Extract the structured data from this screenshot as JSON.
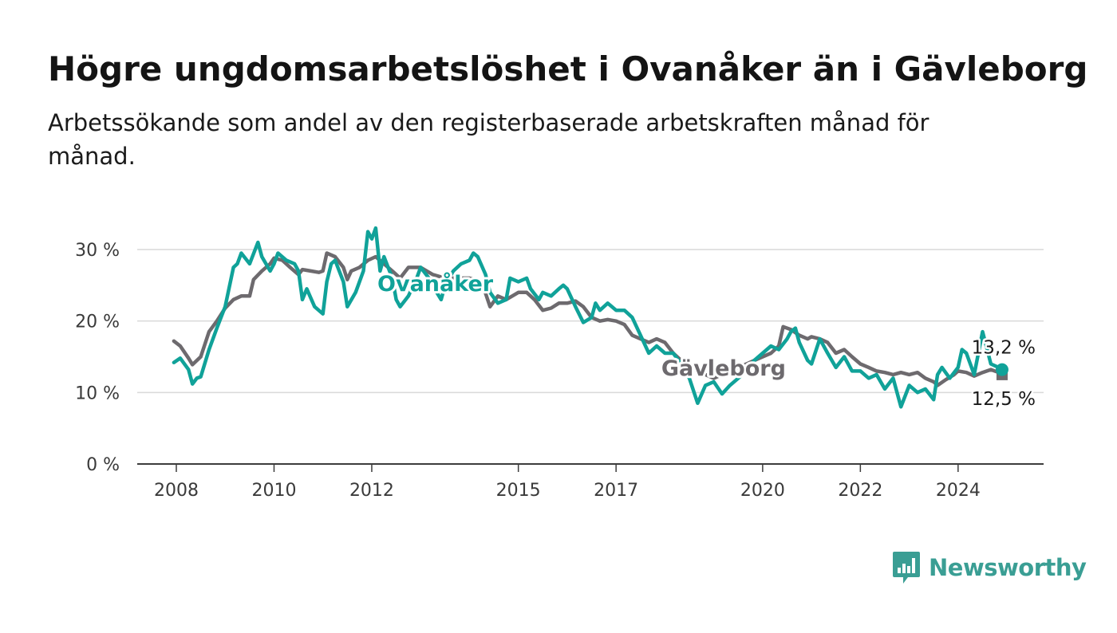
{
  "header": {
    "title": "Högre ungdomsarbetslöshet i Ovanåker än i Gävleborg",
    "subtitle": "Arbetssökande som andel av den registerbaserade arbetskraften månad för månad."
  },
  "brand": {
    "name": "Newsworthy",
    "color": "#3a9e94"
  },
  "chart_data": {
    "type": "line",
    "y_ticks": [
      {
        "value": 0,
        "label": "0 %"
      },
      {
        "value": 10,
        "label": "10 %"
      },
      {
        "value": 20,
        "label": "20 %"
      },
      {
        "value": 30,
        "label": "30 %"
      }
    ],
    "x_ticks": [
      {
        "value": 2008.0,
        "label": "2008"
      },
      {
        "value": 2010.0,
        "label": "2010"
      },
      {
        "value": 2012.0,
        "label": "2012"
      },
      {
        "value": 2015.0,
        "label": "2015"
      },
      {
        "value": 2017.0,
        "label": "2017"
      },
      {
        "value": 2020.0,
        "label": "2020"
      },
      {
        "value": 2022.0,
        "label": "2022"
      },
      {
        "value": 2024.0,
        "label": "2024"
      }
    ],
    "xlim": [
      2007.2,
      2025.75
    ],
    "ylim": [
      0,
      30
    ],
    "grid": true,
    "series": [
      {
        "name": "Gävleborg",
        "color": "#6d6a6e",
        "end_label": "12,5 %",
        "points": [
          [
            2007.95,
            17.2
          ],
          [
            2008.08,
            16.5
          ],
          [
            2008.25,
            14.8
          ],
          [
            2008.33,
            13.9
          ],
          [
            2008.5,
            15.0
          ],
          [
            2008.67,
            18.5
          ],
          [
            2008.83,
            20.0
          ],
          [
            2009.0,
            21.8
          ],
          [
            2009.17,
            23.0
          ],
          [
            2009.33,
            23.5
          ],
          [
            2009.5,
            23.5
          ],
          [
            2009.58,
            25.8
          ],
          [
            2009.75,
            27.0
          ],
          [
            2009.92,
            28.0
          ],
          [
            2010.0,
            28.8
          ],
          [
            2010.17,
            28.5
          ],
          [
            2010.33,
            27.5
          ],
          [
            2010.5,
            26.5
          ],
          [
            2010.58,
            27.2
          ],
          [
            2010.75,
            27.0
          ],
          [
            2010.92,
            26.8
          ],
          [
            2011.0,
            27.0
          ],
          [
            2011.08,
            29.5
          ],
          [
            2011.25,
            29.0
          ],
          [
            2011.42,
            27.5
          ],
          [
            2011.5,
            25.8
          ],
          [
            2011.58,
            27.0
          ],
          [
            2011.75,
            27.5
          ],
          [
            2011.92,
            28.5
          ],
          [
            2012.08,
            29.0
          ],
          [
            2012.25,
            28.0
          ],
          [
            2012.42,
            27.0
          ],
          [
            2012.58,
            26.0
          ],
          [
            2012.75,
            27.5
          ],
          [
            2013.0,
            27.5
          ],
          [
            2013.25,
            26.5
          ],
          [
            2013.5,
            26.0
          ],
          [
            2013.75,
            26.0
          ],
          [
            2014.0,
            26.0
          ],
          [
            2014.25,
            25.5
          ],
          [
            2014.42,
            22.0
          ],
          [
            2014.58,
            23.5
          ],
          [
            2014.75,
            23.0
          ],
          [
            2015.0,
            24.0
          ],
          [
            2015.17,
            24.0
          ],
          [
            2015.33,
            23.0
          ],
          [
            2015.5,
            21.5
          ],
          [
            2015.67,
            21.8
          ],
          [
            2015.83,
            22.5
          ],
          [
            2016.0,
            22.5
          ],
          [
            2016.17,
            22.8
          ],
          [
            2016.33,
            22.0
          ],
          [
            2016.5,
            20.5
          ],
          [
            2016.67,
            20.0
          ],
          [
            2016.83,
            20.2
          ],
          [
            2017.0,
            20.0
          ],
          [
            2017.17,
            19.5
          ],
          [
            2017.33,
            18.0
          ],
          [
            2017.5,
            17.5
          ],
          [
            2017.67,
            17.0
          ],
          [
            2017.83,
            17.5
          ],
          [
            2018.0,
            17.0
          ],
          [
            2018.17,
            15.5
          ],
          [
            2018.33,
            14.5
          ],
          [
            2018.5,
            13.5
          ],
          [
            2018.67,
            13.0
          ],
          [
            2018.83,
            12.5
          ],
          [
            2019.0,
            12.0
          ],
          [
            2019.17,
            12.5
          ],
          [
            2019.33,
            13.0
          ],
          [
            2019.5,
            13.5
          ],
          [
            2019.67,
            14.0
          ],
          [
            2019.83,
            14.5
          ],
          [
            2020.0,
            15.0
          ],
          [
            2020.17,
            15.5
          ],
          [
            2020.33,
            16.5
          ],
          [
            2020.42,
            19.2
          ],
          [
            2020.58,
            18.8
          ],
          [
            2020.75,
            18.0
          ],
          [
            2020.92,
            17.5
          ],
          [
            2021.0,
            17.8
          ],
          [
            2021.17,
            17.5
          ],
          [
            2021.33,
            17.0
          ],
          [
            2021.5,
            15.5
          ],
          [
            2021.67,
            16.0
          ],
          [
            2021.83,
            15.0
          ],
          [
            2022.0,
            14.0
          ],
          [
            2022.17,
            13.5
          ],
          [
            2022.33,
            13.0
          ],
          [
            2022.5,
            12.8
          ],
          [
            2022.67,
            12.5
          ],
          [
            2022.83,
            12.8
          ],
          [
            2023.0,
            12.5
          ],
          [
            2023.17,
            12.8
          ],
          [
            2023.33,
            12.0
          ],
          [
            2023.5,
            11.5
          ],
          [
            2023.58,
            11.0
          ],
          [
            2023.75,
            11.8
          ],
          [
            2023.92,
            12.5
          ],
          [
            2024.0,
            13.0
          ],
          [
            2024.17,
            12.8
          ],
          [
            2024.33,
            12.3
          ],
          [
            2024.5,
            12.8
          ],
          [
            2024.67,
            13.2
          ],
          [
            2024.83,
            12.8
          ],
          [
            2024.9,
            12.5
          ]
        ]
      },
      {
        "name": "Ovanåker",
        "color": "#10a299",
        "end_label": "13,2 %",
        "points": [
          [
            2007.95,
            14.2
          ],
          [
            2008.08,
            14.8
          ],
          [
            2008.25,
            13.2
          ],
          [
            2008.33,
            11.2
          ],
          [
            2008.42,
            12.0
          ],
          [
            2008.5,
            12.2
          ],
          [
            2008.67,
            16.0
          ],
          [
            2008.83,
            19.0
          ],
          [
            2009.0,
            22.0
          ],
          [
            2009.17,
            27.5
          ],
          [
            2009.25,
            28.0
          ],
          [
            2009.33,
            29.5
          ],
          [
            2009.5,
            28.0
          ],
          [
            2009.67,
            31.0
          ],
          [
            2009.75,
            29.0
          ],
          [
            2009.92,
            27.0
          ],
          [
            2010.0,
            28.0
          ],
          [
            2010.08,
            29.5
          ],
          [
            2010.25,
            28.5
          ],
          [
            2010.42,
            28.0
          ],
          [
            2010.5,
            27.0
          ],
          [
            2010.58,
            23.0
          ],
          [
            2010.67,
            24.5
          ],
          [
            2010.83,
            22.0
          ],
          [
            2011.0,
            21.0
          ],
          [
            2011.08,
            25.5
          ],
          [
            2011.17,
            28.0
          ],
          [
            2011.25,
            28.5
          ],
          [
            2011.42,
            25.5
          ],
          [
            2011.5,
            22.0
          ],
          [
            2011.67,
            24.0
          ],
          [
            2011.83,
            27.0
          ],
          [
            2011.92,
            32.5
          ],
          [
            2012.0,
            31.5
          ],
          [
            2012.08,
            33.0
          ],
          [
            2012.17,
            27.0
          ],
          [
            2012.25,
            29.0
          ],
          [
            2012.42,
            26.0
          ],
          [
            2012.5,
            23.0
          ],
          [
            2012.58,
            22.0
          ],
          [
            2012.75,
            23.5
          ],
          [
            2012.92,
            26.0
          ],
          [
            2013.0,
            27.5
          ],
          [
            2013.17,
            26.0
          ],
          [
            2013.33,
            24.0
          ],
          [
            2013.42,
            23.0
          ],
          [
            2013.5,
            25.0
          ],
          [
            2013.67,
            27.0
          ],
          [
            2013.83,
            28.0
          ],
          [
            2014.0,
            28.5
          ],
          [
            2014.08,
            29.5
          ],
          [
            2014.17,
            29.0
          ],
          [
            2014.33,
            26.5
          ],
          [
            2014.42,
            24.0
          ],
          [
            2014.58,
            22.5
          ],
          [
            2014.75,
            23.0
          ],
          [
            2014.83,
            26.0
          ],
          [
            2015.0,
            25.5
          ],
          [
            2015.17,
            26.0
          ],
          [
            2015.25,
            24.5
          ],
          [
            2015.42,
            23.0
          ],
          [
            2015.5,
            24.0
          ],
          [
            2015.67,
            23.5
          ],
          [
            2015.83,
            24.5
          ],
          [
            2015.92,
            25.0
          ],
          [
            2016.0,
            24.5
          ],
          [
            2016.17,
            22.0
          ],
          [
            2016.33,
            19.8
          ],
          [
            2016.5,
            20.5
          ],
          [
            2016.58,
            22.5
          ],
          [
            2016.67,
            21.5
          ],
          [
            2016.83,
            22.5
          ],
          [
            2017.0,
            21.5
          ],
          [
            2017.17,
            21.5
          ],
          [
            2017.33,
            20.5
          ],
          [
            2017.5,
            18.0
          ],
          [
            2017.67,
            15.5
          ],
          [
            2017.83,
            16.5
          ],
          [
            2018.0,
            15.5
          ],
          [
            2018.17,
            15.5
          ],
          [
            2018.33,
            14.0
          ],
          [
            2018.5,
            12.0
          ],
          [
            2018.67,
            8.5
          ],
          [
            2018.83,
            11.0
          ],
          [
            2019.0,
            11.5
          ],
          [
            2019.17,
            9.8
          ],
          [
            2019.33,
            11.0
          ],
          [
            2019.5,
            12.0
          ],
          [
            2019.67,
            13.0
          ],
          [
            2019.83,
            14.5
          ],
          [
            2020.0,
            15.5
          ],
          [
            2020.17,
            16.5
          ],
          [
            2020.33,
            16.0
          ],
          [
            2020.5,
            17.5
          ],
          [
            2020.58,
            18.5
          ],
          [
            2020.67,
            19.0
          ],
          [
            2020.75,
            17.0
          ],
          [
            2020.92,
            14.5
          ],
          [
            2021.0,
            14.0
          ],
          [
            2021.17,
            17.5
          ],
          [
            2021.33,
            15.5
          ],
          [
            2021.5,
            13.5
          ],
          [
            2021.67,
            15.0
          ],
          [
            2021.83,
            13.0
          ],
          [
            2022.0,
            13.0
          ],
          [
            2022.17,
            12.0
          ],
          [
            2022.33,
            12.5
          ],
          [
            2022.5,
            10.5
          ],
          [
            2022.67,
            12.0
          ],
          [
            2022.83,
            8.0
          ],
          [
            2023.0,
            11.0
          ],
          [
            2023.17,
            10.0
          ],
          [
            2023.33,
            10.5
          ],
          [
            2023.5,
            9.0
          ],
          [
            2023.58,
            12.5
          ],
          [
            2023.67,
            13.5
          ],
          [
            2023.83,
            12.0
          ],
          [
            2024.0,
            13.5
          ],
          [
            2024.08,
            16.0
          ],
          [
            2024.17,
            15.5
          ],
          [
            2024.33,
            12.5
          ],
          [
            2024.5,
            18.5
          ],
          [
            2024.67,
            14.0
          ],
          [
            2024.83,
            13.5
          ],
          [
            2024.9,
            13.2
          ]
        ]
      }
    ]
  }
}
